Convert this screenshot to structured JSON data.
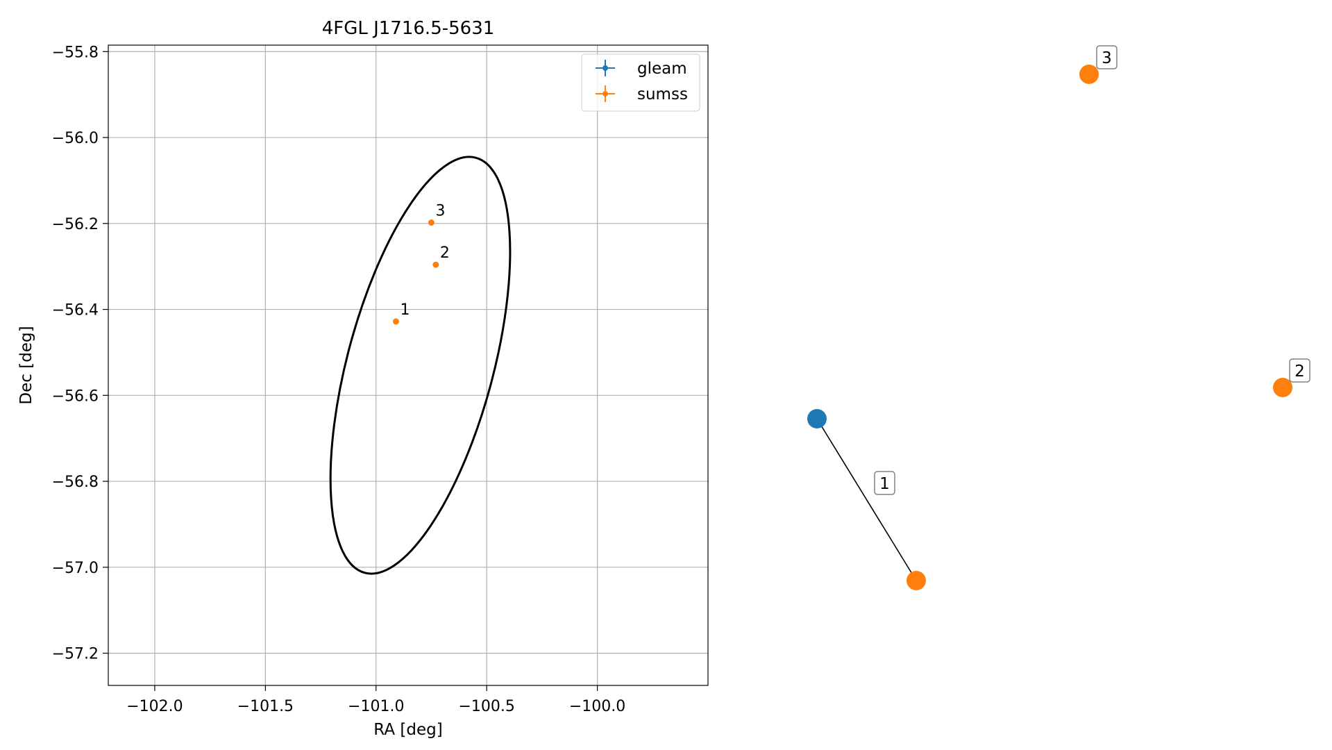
{
  "chart_data": [
    {
      "type": "scatter",
      "title": "4FGL J1716.5-5631",
      "xlabel": "RA [deg]",
      "ylabel": "Dec [deg]",
      "xlim": [
        -102.21,
        -99.5
      ],
      "ylim": [
        -57.275,
        -55.785
      ],
      "xticks": [
        -102.0,
        -101.5,
        -101.0,
        -100.5,
        -100.0
      ],
      "xtick_labels": [
        "−102.0",
        "−101.5",
        "−101.0",
        "−100.5",
        "−100.0"
      ],
      "yticks": [
        -55.8,
        -56.0,
        -56.2,
        -56.4,
        -56.6,
        -56.8,
        -57.0,
        -57.2
      ],
      "ytick_labels": [
        "−55.8",
        "−56.0",
        "−56.2",
        "−56.4",
        "−56.6",
        "−56.8",
        "−57.0",
        "−57.2"
      ],
      "grid": true,
      "legend_position": "top-right",
      "legend": [
        {
          "name": "gleam",
          "color": "#1f77b4"
        },
        {
          "name": "sumss",
          "color": "#ff7f0e"
        }
      ],
      "series": [
        {
          "name": "gleam",
          "color": "#1f77b4",
          "points": []
        },
        {
          "name": "sumss",
          "color": "#ff7f0e",
          "points": [
            {
              "label": "1",
              "x": -100.91,
              "y": -56.428
            },
            {
              "label": "2",
              "x": -100.73,
              "y": -56.296
            },
            {
              "label": "3",
              "x": -100.75,
              "y": -56.198
            }
          ]
        }
      ],
      "ellipse": {
        "center": [
          -100.8,
          -56.53
        ],
        "semi_major": 0.5,
        "semi_minor": 0.17,
        "color": "#000000"
      }
    },
    {
      "type": "network",
      "nodes": [
        {
          "id": "gleam",
          "color": "#1f77b4"
        },
        {
          "id": "sumss-1",
          "color": "#ff7f0e"
        },
        {
          "id": "sumss-2",
          "color": "#ff7f0e"
        },
        {
          "id": "sumss-3",
          "color": "#ff7f0e"
        }
      ],
      "edges": [
        {
          "source": "gleam",
          "target": "sumss-1",
          "label": "1"
        }
      ],
      "node_labels": [
        {
          "node": "sumss-2",
          "label": "2"
        },
        {
          "node": "sumss-3",
          "label": "3"
        }
      ]
    }
  ]
}
